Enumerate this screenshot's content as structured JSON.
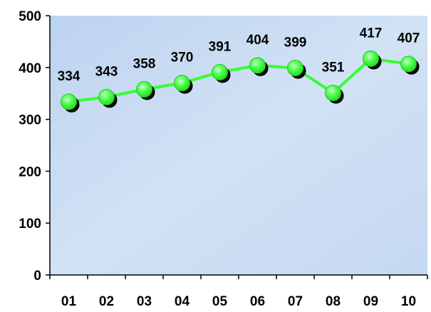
{
  "chart_data": {
    "type": "line",
    "categories": [
      "01",
      "02",
      "03",
      "04",
      "05",
      "06",
      "07",
      "08",
      "09",
      "10"
    ],
    "series": [
      {
        "values": [
          334,
          343,
          358,
          370,
          391,
          404,
          399,
          351,
          417,
          407
        ]
      }
    ],
    "ylim": [
      0,
      500
    ],
    "yticks": [
      0,
      100,
      200,
      300,
      400,
      500
    ],
    "grid": false,
    "data_labels": [
      "334",
      "343",
      "358",
      "370",
      "391",
      "404",
      "399",
      "351",
      "417",
      "407"
    ],
    "colors": {
      "line": "#33ff33",
      "marker": "#33ff33",
      "marker_shadow": "#000000",
      "plot_background": "#c9dcf2",
      "axis": "#000000"
    }
  }
}
